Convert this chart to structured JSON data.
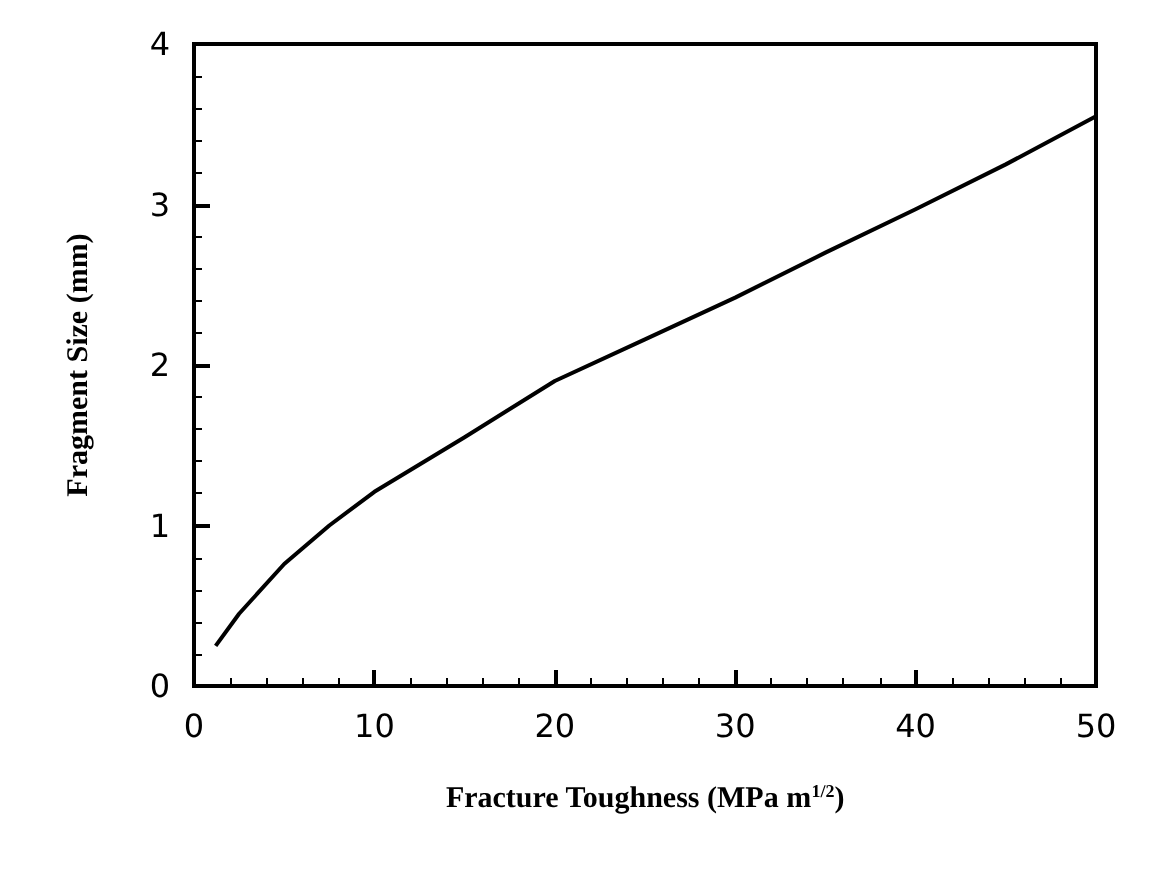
{
  "chart_data": {
    "type": "line",
    "xlabel": "Fracture Toughness (MPa m$^{1/2}$)",
    "ylabel": "Fragment Size (mm)",
    "x": [
      1.2,
      2.5,
      5,
      7.5,
      10,
      15,
      20,
      25,
      30,
      35,
      40,
      45,
      50
    ],
    "series": [
      {
        "color": "#000000",
        "values": [
          0.25,
          0.45,
          0.76,
          1.0,
          1.21,
          1.55,
          1.9,
          2.16,
          2.42,
          2.7,
          2.97,
          3.25,
          3.55
        ]
      }
    ],
    "xlim": [
      0,
      50
    ],
    "xticks": [
      0,
      10,
      20,
      30,
      40,
      50
    ],
    "ylim": [
      0,
      4
    ],
    "yticks": [
      0,
      1,
      2,
      3,
      4
    ],
    "grid": false,
    "marker": "none",
    "line_style": "solid"
  }
}
